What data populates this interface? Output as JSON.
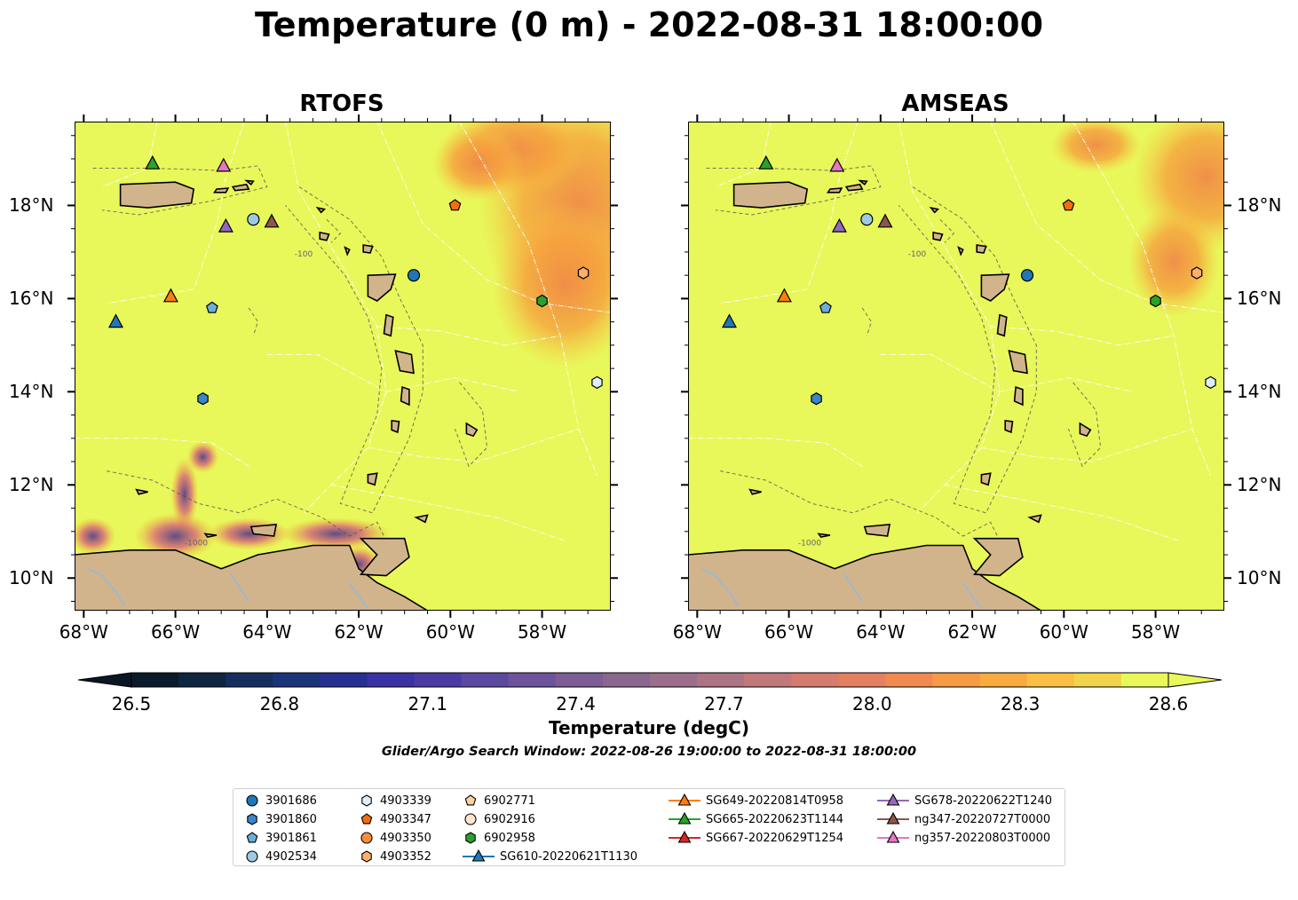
{
  "title": "Temperature (0 m) - 2022-08-31 18:00:00",
  "panels": [
    {
      "title": "RTOFS"
    },
    {
      "title": "AMSEAS"
    }
  ],
  "colorbar": {
    "label": "Temperature (degC)",
    "ticks": [
      "26.5",
      "26.8",
      "27.1",
      "27.4",
      "27.7",
      "28.0",
      "28.3",
      "28.6"
    ],
    "range": [
      26.5,
      28.6
    ],
    "extend": "both",
    "colormap": "thermal"
  },
  "search_window": "Glider/Argo Search Window: 2022-08-26 19:00:00 to 2022-08-31 18:00:00",
  "colors": {
    "land": "#d2b48c",
    "ocean_uniform": "#e8f85a",
    "bathymetry_contour": "#555555",
    "eez_lines": "#ffffff",
    "rivers": "#9fb8cc"
  },
  "chart_data": {
    "type": "map",
    "projection": "PlateCarree",
    "lon_range": [
      -68.2,
      -56.5
    ],
    "lat_range": [
      9.3,
      19.8
    ],
    "lon_ticks": [
      "68°W",
      "66°W",
      "64°W",
      "62°W",
      "60°W",
      "58°W"
    ],
    "lat_ticks": [
      "10°N",
      "12°N",
      "14°N",
      "16°N",
      "18°N"
    ],
    "contour_labels": [
      "-1000",
      "-100"
    ],
    "legend": [
      {
        "label": "3901686",
        "marker": "circle",
        "color": "#1f77b4",
        "lon": -60.8,
        "lat": 16.5
      },
      {
        "label": "3901860",
        "marker": "hexagon",
        "color": "#3a86c8",
        "lon": -65.4,
        "lat": 13.85
      },
      {
        "label": "3901861",
        "marker": "pentagon",
        "color": "#6baed6",
        "lon": -65.2,
        "lat": 15.8
      },
      {
        "label": "4902534",
        "marker": "circle",
        "color": "#9ecae1",
        "lon": -64.3,
        "lat": 17.7
      },
      {
        "label": "4903339",
        "marker": "hexagon",
        "color": "#ddeeff",
        "lon": -56.8,
        "lat": 14.2
      },
      {
        "label": "4903347",
        "marker": "pentagon",
        "color": "#f46d0e",
        "lon": -59.9,
        "lat": 18.0
      },
      {
        "label": "4903350",
        "marker": "circle",
        "color": "#fd8d3c",
        "lon": null,
        "lat": null
      },
      {
        "label": "4903352",
        "marker": "hexagon",
        "color": "#fdae6b",
        "lon": -57.1,
        "lat": 16.55
      },
      {
        "label": "6902771",
        "marker": "pentagon",
        "color": "#fdd0a2",
        "lon": null,
        "lat": null
      },
      {
        "label": "6902916",
        "marker": "circle",
        "color": "#fee6ce",
        "lon": null,
        "lat": null
      },
      {
        "label": "6902958",
        "marker": "hexagon",
        "color": "#2ca02c",
        "lon": -58.0,
        "lat": 15.95
      },
      {
        "label": "SG610-20220621T1130",
        "marker": "triangle",
        "color": "#1f77b4",
        "line": true,
        "lon": -67.3,
        "lat": 15.5
      },
      {
        "label": "SG649-20220814T0958",
        "marker": "triangle",
        "color": "#ff7f0e",
        "line": true,
        "lon": -66.1,
        "lat": 16.05
      },
      {
        "label": "SG665-20220623T1144",
        "marker": "triangle",
        "color": "#2ca02c",
        "line": true,
        "lon": -66.5,
        "lat": 18.9
      },
      {
        "label": "SG667-20220629T1254",
        "marker": "triangle",
        "color": "#d62728",
        "line": true,
        "lon": null,
        "lat": null
      },
      {
        "label": "SG678-20220622T1240",
        "marker": "triangle",
        "color": "#9467bd",
        "line": true,
        "lon": -64.9,
        "lat": 17.55
      },
      {
        "label": "ng347-20220727T0000",
        "marker": "triangle",
        "color": "#8c564b",
        "line": true,
        "lon": -63.9,
        "lat": 17.65
      },
      {
        "label": "ng357-20220803T0000",
        "marker": "triangle",
        "color": "#e377c2",
        "line": true,
        "lon": -64.95,
        "lat": 18.85
      }
    ]
  }
}
